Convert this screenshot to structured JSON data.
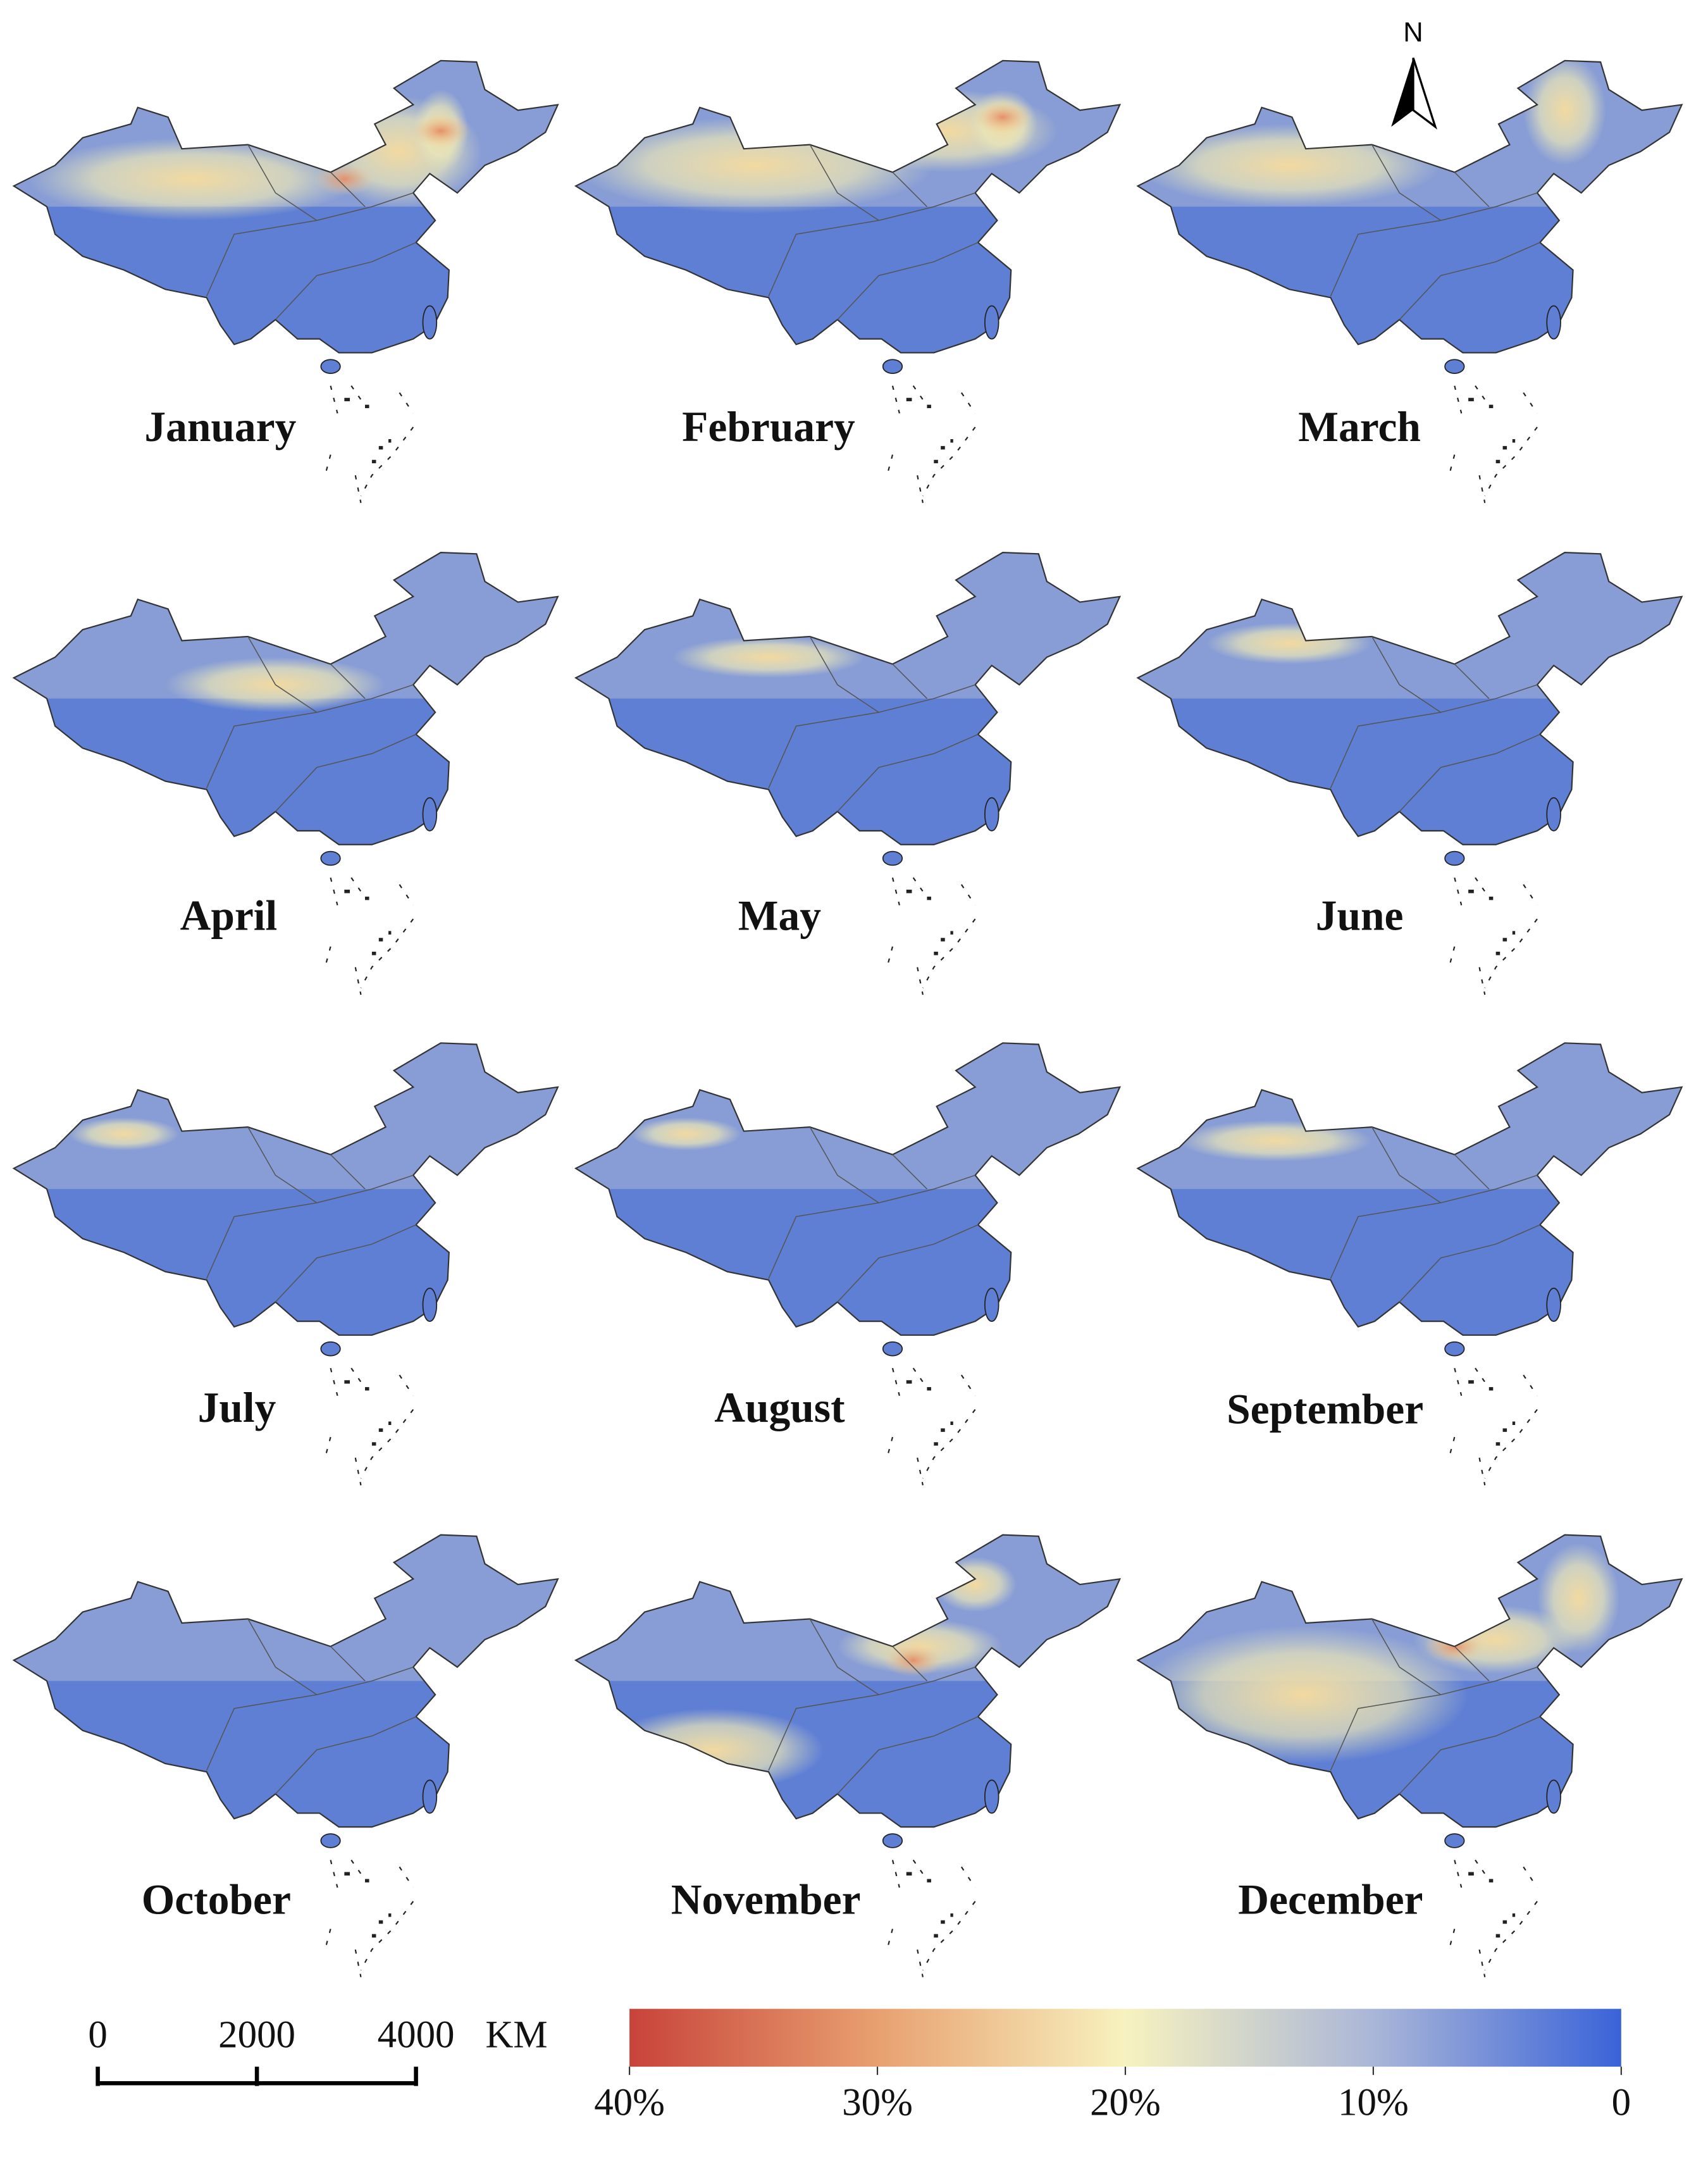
{
  "panels": [
    {
      "label": "January"
    },
    {
      "label": "February"
    },
    {
      "label": "March"
    },
    {
      "label": "April"
    },
    {
      "label": "May"
    },
    {
      "label": "June"
    },
    {
      "label": "July"
    },
    {
      "label": "August"
    },
    {
      "label": "September"
    },
    {
      "label": "October"
    },
    {
      "label": "November"
    },
    {
      "label": "December"
    }
  ],
  "north_arrow": {
    "label": "N"
  },
  "scale_bar": {
    "lim": [
      0,
      4000
    ],
    "ticks": [
      0,
      2000,
      4000
    ],
    "unit": "KM"
  },
  "colorbar": {
    "lim": [
      40,
      0
    ],
    "ticks": [
      {
        "value": 40,
        "label": "40%"
      },
      {
        "value": 30,
        "label": "30%"
      },
      {
        "value": 20,
        "label": "20%"
      },
      {
        "value": 10,
        "label": "10%"
      },
      0
    ]
  }
}
